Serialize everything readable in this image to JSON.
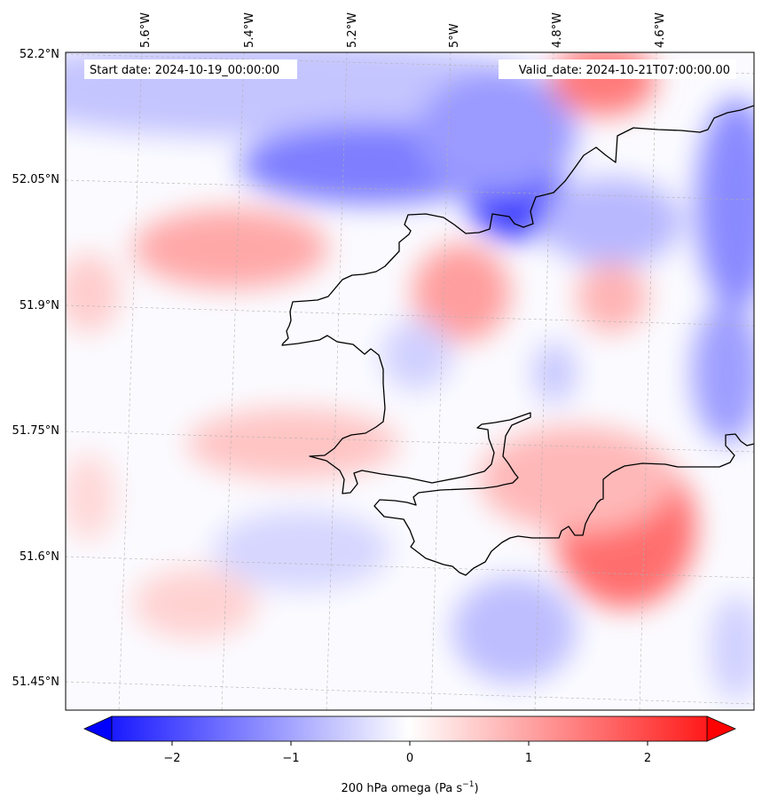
{
  "map": {
    "start_date": "Start date: 2024-10-19_00:00:00",
    "valid_date": "Valid_date: 2024-10-21T07:00:00.00",
    "lon_labels": [
      "5.6°W",
      "5.4°W",
      "5.2°W",
      "5°W",
      "4.8°W",
      "4.6°W"
    ],
    "lat_labels": [
      "52.2°N",
      "52.05°N",
      "51.9°N",
      "51.75°N",
      "51.6°N",
      "51.45°N"
    ],
    "gridlines": true
  },
  "colorbar": {
    "ticks": [
      "−2",
      "−1",
      "0",
      "1",
      "2"
    ],
    "label_main": "200 hPa omega (Pa s",
    "label_sup": "−1",
    "label_end": ")",
    "range": [
      -2.5,
      2.5
    ],
    "colors": {
      "low": "#0000ff",
      "mid": "#ffffff",
      "high": "#ff0000"
    }
  }
}
